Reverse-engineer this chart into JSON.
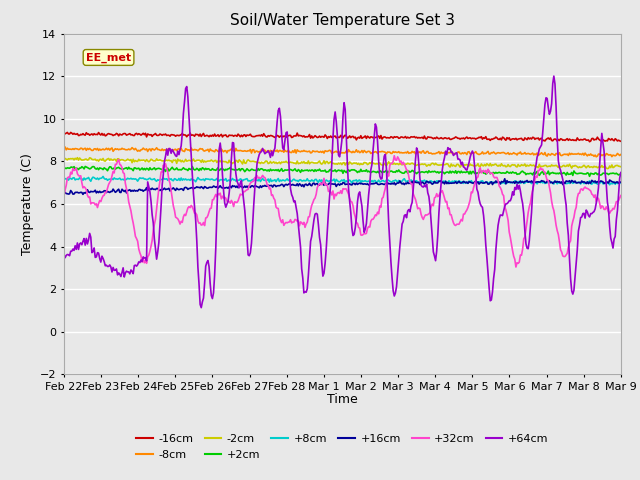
{
  "title": "Soil/Water Temperature Set 3",
  "xlabel": "Time",
  "ylabel": "Temperature (C)",
  "ylim": [
    -2,
    14
  ],
  "yticks": [
    -2,
    0,
    2,
    4,
    6,
    8,
    10,
    12,
    14
  ],
  "background_color": "#e8e8e8",
  "plot_bg_color": "#e8e8e8",
  "series": [
    {
      "label": "-16cm",
      "color": "#cc0000"
    },
    {
      "label": "-8cm",
      "color": "#ff8800"
    },
    {
      "label": "-2cm",
      "color": "#cccc00"
    },
    {
      "label": "+2cm",
      "color": "#00cc00"
    },
    {
      "label": "+8cm",
      "color": "#00cccc"
    },
    {
      "label": "+16cm",
      "color": "#000099"
    },
    {
      "label": "+32cm",
      "color": "#ff44cc"
    },
    {
      "label": "+64cm",
      "color": "#9900cc"
    }
  ],
  "xtick_labels": [
    "Feb 22",
    "Feb 23",
    "Feb 24",
    "Feb 25",
    "Feb 26",
    "Feb 27",
    "Feb 28",
    "Mar 1",
    "Mar 2",
    "Mar 3",
    "Mar 4",
    "Mar 5",
    "Mar 6",
    "Mar 7",
    "Mar 8",
    "Mar 9"
  ],
  "n_points": 500
}
